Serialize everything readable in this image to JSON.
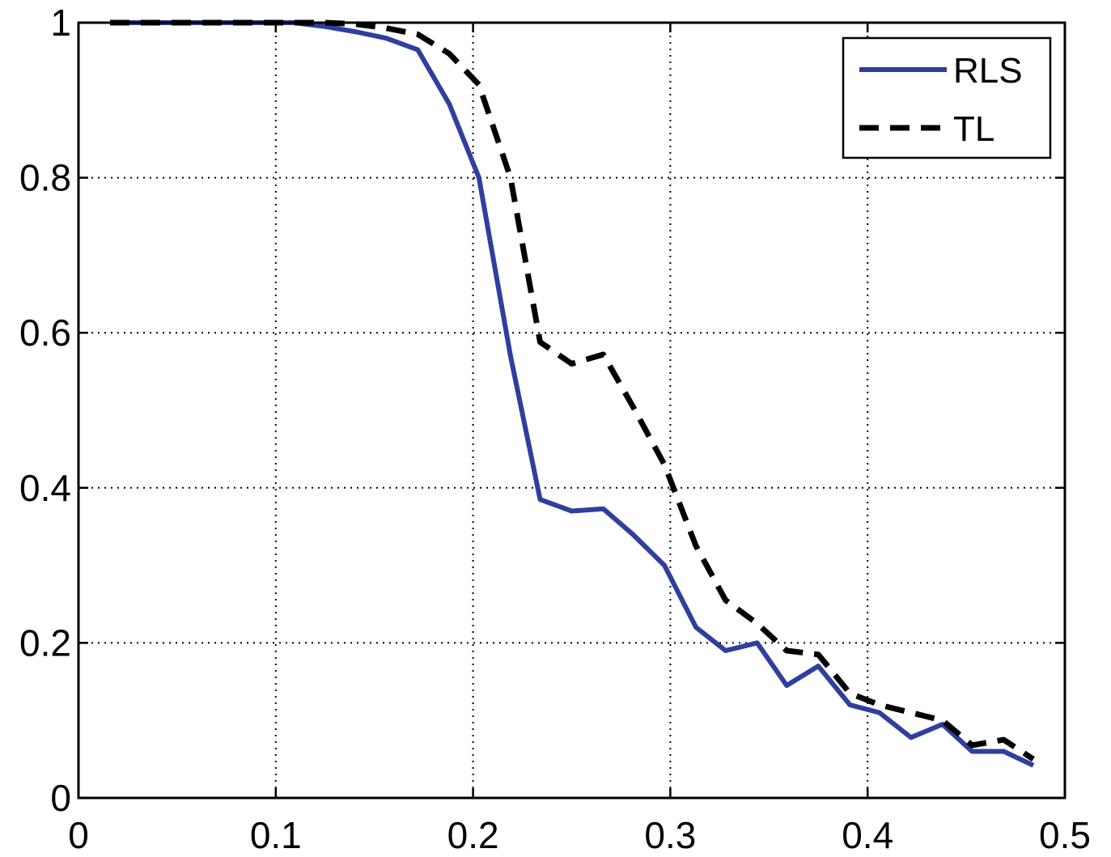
{
  "chart_data": {
    "type": "line",
    "title": "",
    "xlabel": "",
    "ylabel": "",
    "xlim": [
      0,
      0.5
    ],
    "ylim": [
      0,
      1
    ],
    "x_ticks": [
      "0",
      "0.1",
      "0.2",
      "0.3",
      "0.4",
      "0.5"
    ],
    "y_ticks": [
      "0",
      "0.2",
      "0.4",
      "0.6",
      "0.8",
      "1"
    ],
    "grid": true,
    "legend_position": "top-right",
    "series": [
      {
        "name": "RLS",
        "style": "solid",
        "color": "#2E3F9E",
        "points": [
          [
            0.016,
            1.0
          ],
          [
            0.031,
            1.0
          ],
          [
            0.047,
            1.0
          ],
          [
            0.063,
            1.0
          ],
          [
            0.078,
            1.0
          ],
          [
            0.094,
            1.0
          ],
          [
            0.109,
            1.0
          ],
          [
            0.125,
            0.995
          ],
          [
            0.141,
            0.988
          ],
          [
            0.156,
            0.98
          ],
          [
            0.172,
            0.965
          ],
          [
            0.188,
            0.895
          ],
          [
            0.203,
            0.8
          ],
          [
            0.219,
            0.57
          ],
          [
            0.234,
            0.385
          ],
          [
            0.25,
            0.37
          ],
          [
            0.266,
            0.373
          ],
          [
            0.281,
            0.34
          ],
          [
            0.297,
            0.3
          ],
          [
            0.313,
            0.22
          ],
          [
            0.328,
            0.19
          ],
          [
            0.344,
            0.2
          ],
          [
            0.359,
            0.145
          ],
          [
            0.375,
            0.17
          ],
          [
            0.391,
            0.12
          ],
          [
            0.406,
            0.11
          ],
          [
            0.422,
            0.078
          ],
          [
            0.438,
            0.095
          ],
          [
            0.453,
            0.06
          ],
          [
            0.469,
            0.06
          ],
          [
            0.484,
            0.042
          ]
        ]
      },
      {
        "name": "TL",
        "style": "dashed",
        "color": "#000000",
        "points": [
          [
            0.016,
            1.0
          ],
          [
            0.031,
            1.0
          ],
          [
            0.047,
            1.0
          ],
          [
            0.063,
            1.0
          ],
          [
            0.078,
            1.0
          ],
          [
            0.094,
            1.0
          ],
          [
            0.109,
            1.0
          ],
          [
            0.125,
            1.0
          ],
          [
            0.141,
            0.998
          ],
          [
            0.156,
            0.993
          ],
          [
            0.172,
            0.985
          ],
          [
            0.188,
            0.96
          ],
          [
            0.203,
            0.92
          ],
          [
            0.219,
            0.8
          ],
          [
            0.234,
            0.588
          ],
          [
            0.25,
            0.56
          ],
          [
            0.266,
            0.572
          ],
          [
            0.281,
            0.505
          ],
          [
            0.297,
            0.43
          ],
          [
            0.313,
            0.325
          ],
          [
            0.328,
            0.255
          ],
          [
            0.344,
            0.225
          ],
          [
            0.359,
            0.19
          ],
          [
            0.375,
            0.185
          ],
          [
            0.391,
            0.135
          ],
          [
            0.406,
            0.12
          ],
          [
            0.422,
            0.11
          ],
          [
            0.438,
            0.1
          ],
          [
            0.453,
            0.068
          ],
          [
            0.469,
            0.075
          ],
          [
            0.484,
            0.05
          ]
        ]
      }
    ]
  }
}
